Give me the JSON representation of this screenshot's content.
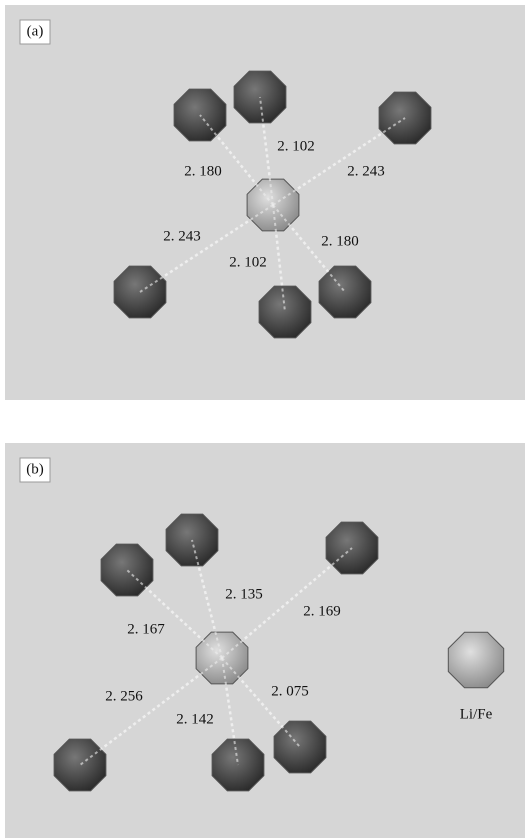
{
  "panels": [
    {
      "label": "(a)",
      "bonds": [
        "2. 180",
        "2. 102",
        "2. 243",
        "2. 243",
        "2. 102",
        "2. 180"
      ]
    },
    {
      "label": "(b)",
      "bonds": [
        "2. 135",
        "2. 169",
        "2. 167",
        "2. 075",
        "2. 256",
        "2. 142"
      ]
    }
  ],
  "legend": {
    "label": "Li/Fe"
  }
}
